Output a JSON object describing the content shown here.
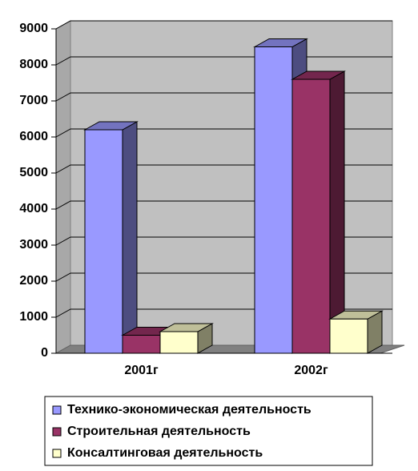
{
  "chart_data": {
    "type": "bar3d",
    "categories": [
      "2001г",
      "2002г"
    ],
    "series": [
      {
        "name": "Технико-экономическая деятельность",
        "color": "#9999ff",
        "values": [
          6200,
          8500
        ]
      },
      {
        "name": "Строительная деятельность",
        "color": "#993366",
        "values": [
          500,
          7600
        ]
      },
      {
        "name": "Консалтинговая деятельность",
        "color": "#ffffcc",
        "values": [
          600,
          950
        ]
      }
    ],
    "ylim": [
      0,
      9000
    ],
    "yticks": [
      0,
      1000,
      2000,
      3000,
      4000,
      5000,
      6000,
      7000,
      8000,
      9000
    ],
    "grid": true,
    "legend": "bottom"
  }
}
